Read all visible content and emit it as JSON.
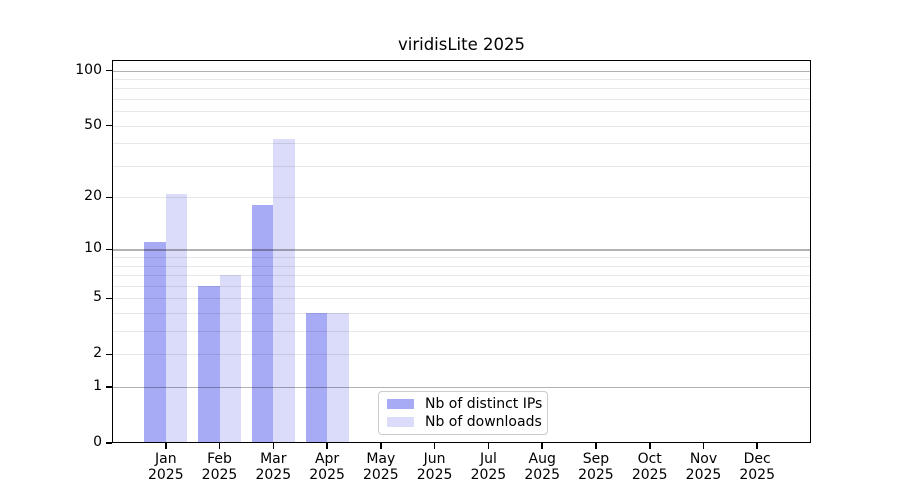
{
  "chart_data": {
    "type": "bar",
    "title": "viridisLite 2025",
    "categories": [
      "Jan",
      "Feb",
      "Mar",
      "Apr",
      "May",
      "Jun",
      "Jul",
      "Aug",
      "Sep",
      "Oct",
      "Nov",
      "Dec"
    ],
    "x_year_label": "2025",
    "series": [
      {
        "name": "Nb of distinct IPs",
        "color": "#a7aaf4",
        "values": [
          11,
          6,
          18,
          4,
          0,
          0,
          0,
          0,
          0,
          0,
          0,
          0
        ]
      },
      {
        "name": "Nb of downloads",
        "color": "#dadcf9",
        "values": [
          21,
          7,
          42,
          4,
          0,
          0,
          0,
          0,
          0,
          0,
          0,
          0
        ]
      }
    ],
    "y_scale": "log1p",
    "ylim": [
      0,
      114
    ],
    "y_major_ticks": [
      0,
      1,
      2,
      5,
      10,
      20,
      50,
      100
    ],
    "y_decade_gridlines": [
      1,
      10,
      100
    ],
    "y_minor_gridlines": [
      3,
      4,
      6,
      7,
      8,
      9,
      30,
      40,
      60,
      70,
      80,
      90
    ],
    "grid": "on",
    "legend_position": "lower center",
    "colors": {
      "decade_gridline": "rgba(0,0,0,0.30)",
      "minor_gridline": "rgba(0,0,0,0.09)",
      "spine": "#000000",
      "legend_border": "#cccccc",
      "text": "#000000",
      "background": "#ffffff"
    }
  }
}
